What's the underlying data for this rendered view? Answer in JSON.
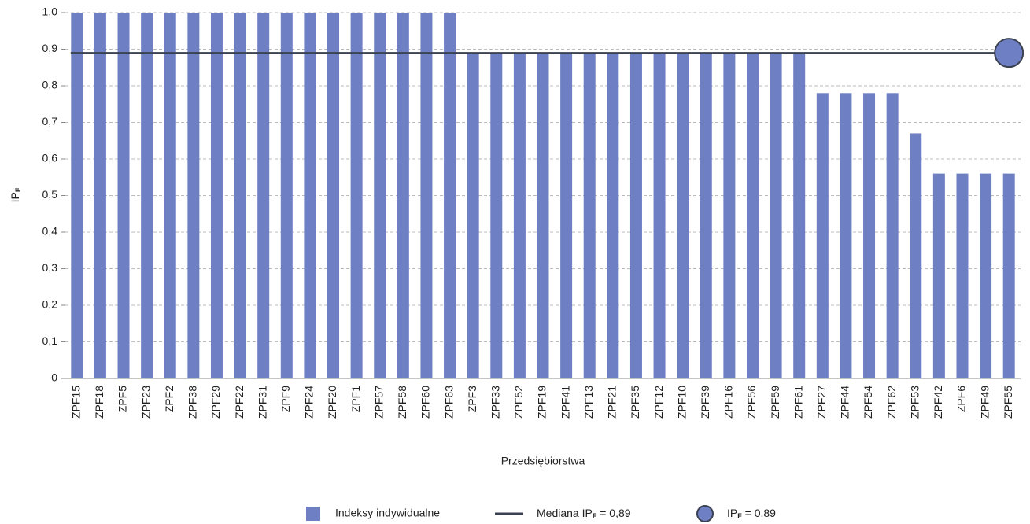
{
  "chart_data": {
    "type": "bar",
    "x_label": "Przedsiębiorstwa",
    "y_label": {
      "main": "IP",
      "sub": "F"
    },
    "categories": [
      "ZPF15",
      "ZPF18",
      "ZPF5",
      "ZPF23",
      "ZPF2",
      "ZPF38",
      "ZPF29",
      "ZPF22",
      "ZPF31",
      "ZPF9",
      "ZPF24",
      "ZPF20",
      "ZPF1",
      "ZPF57",
      "ZPF58",
      "ZPF60",
      "ZPF63",
      "ZPF3",
      "ZPF33",
      "ZPF52",
      "ZPF19",
      "ZPF41",
      "ZPF13",
      "ZPF21",
      "ZPF35",
      "ZPF12",
      "ZPF10",
      "ZPF39",
      "ZPF16",
      "ZPF56",
      "ZPF59",
      "ZPF61",
      "ZPF27",
      "ZPF44",
      "ZPF54",
      "ZPF62",
      "ZPF53",
      "ZPF42",
      "ZPF6",
      "ZPF49",
      "ZPF55"
    ],
    "series": [
      {
        "name": "Indeksy indywidualne",
        "color": "#6f7fc4",
        "values": [
          1,
          1,
          1,
          1,
          1,
          1,
          1,
          1,
          1,
          1,
          1,
          1,
          1,
          1,
          1,
          1,
          1,
          0.89,
          0.89,
          0.89,
          0.89,
          0.89,
          0.89,
          0.89,
          0.89,
          0.89,
          0.89,
          0.89,
          0.89,
          0.89,
          0.89,
          0.89,
          0.78,
          0.78,
          0.78,
          0.78,
          0.67,
          0.56,
          0.56,
          0.56,
          0.56
        ]
      }
    ],
    "median": {
      "value": 0.89,
      "color": "#3a4150",
      "label_parts": [
        "Mediana IP",
        "F",
        " = 0,89"
      ]
    },
    "point": {
      "value": 0.89,
      "color": "#6f7fc4",
      "label_parts": [
        "IP",
        "F",
        " = 0,89"
      ]
    },
    "ylim": [
      0,
      1
    ],
    "yticks": [
      0,
      {
        "value": 0.1,
        "label": "0,1"
      },
      {
        "value": 0.2,
        "label": "0,2"
      },
      {
        "value": 0.3,
        "label": "0,3"
      },
      {
        "value": 0.4,
        "label": "0,4"
      },
      {
        "value": 0.5,
        "label": "0,5"
      },
      {
        "value": 0.6,
        "label": "0,6"
      },
      {
        "value": 0.7,
        "label": "0,7"
      },
      {
        "value": 0.8,
        "label": "0,8"
      },
      {
        "value": 0.9,
        "label": "0,9"
      },
      {
        "value": 1,
        "label": "1,0"
      }
    ],
    "grid": true
  }
}
